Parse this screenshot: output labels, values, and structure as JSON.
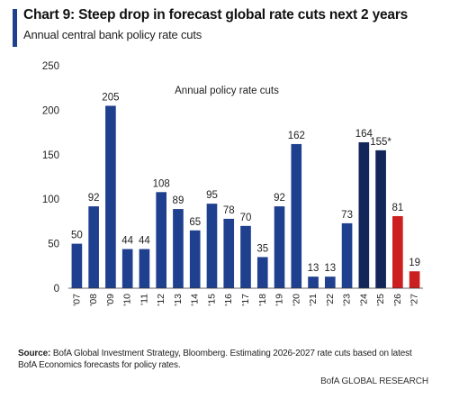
{
  "header": {
    "title": "Chart 9: Steep drop in forecast global rate cuts next 2 years",
    "subtitle": "Annual central bank policy rate cuts"
  },
  "chart_data": {
    "type": "bar",
    "series_label": "Annual policy rate cuts",
    "categories": [
      "'07",
      "'08",
      "'09",
      "'10",
      "'11",
      "'12",
      "'13",
      "'14",
      "'15",
      "'16",
      "'17",
      "'18",
      "'19",
      "'20",
      "'21",
      "'22",
      "'23",
      "'24",
      "'25",
      "'26",
      "'27"
    ],
    "values": [
      50,
      92,
      205,
      44,
      44,
      108,
      89,
      65,
      95,
      78,
      70,
      35,
      92,
      162,
      13,
      13,
      73,
      164,
      155,
      81,
      19
    ],
    "value_labels": [
      "50",
      "92",
      "205",
      "44",
      "44",
      "108",
      "89",
      "65",
      "95",
      "78",
      "70",
      "35",
      "92",
      "162",
      "13",
      "13",
      "73",
      "164",
      "155*",
      "81",
      "19"
    ],
    "colors": [
      "#1f3f8f",
      "#1f3f8f",
      "#1f3f8f",
      "#1f3f8f",
      "#1f3f8f",
      "#1f3f8f",
      "#1f3f8f",
      "#1f3f8f",
      "#1f3f8f",
      "#1f3f8f",
      "#1f3f8f",
      "#1f3f8f",
      "#1f3f8f",
      "#1f3f8f",
      "#1f3f8f",
      "#1f3f8f",
      "#1f3f8f",
      "#12265a",
      "#12265a",
      "#cc1f1f",
      "#cc1f1f"
    ],
    "ylim": [
      0,
      250
    ],
    "yticks": [
      0,
      50,
      100,
      150,
      200,
      250
    ],
    "grid": false,
    "legend": "none"
  },
  "source": {
    "label": "Source:",
    "text": " BofA Global Investment Strategy, Bloomberg. Estimating 2026-2027 rate cuts based on latest BofA Economics forecasts for policy rates."
  },
  "footer": "BofA GLOBAL RESEARCH"
}
